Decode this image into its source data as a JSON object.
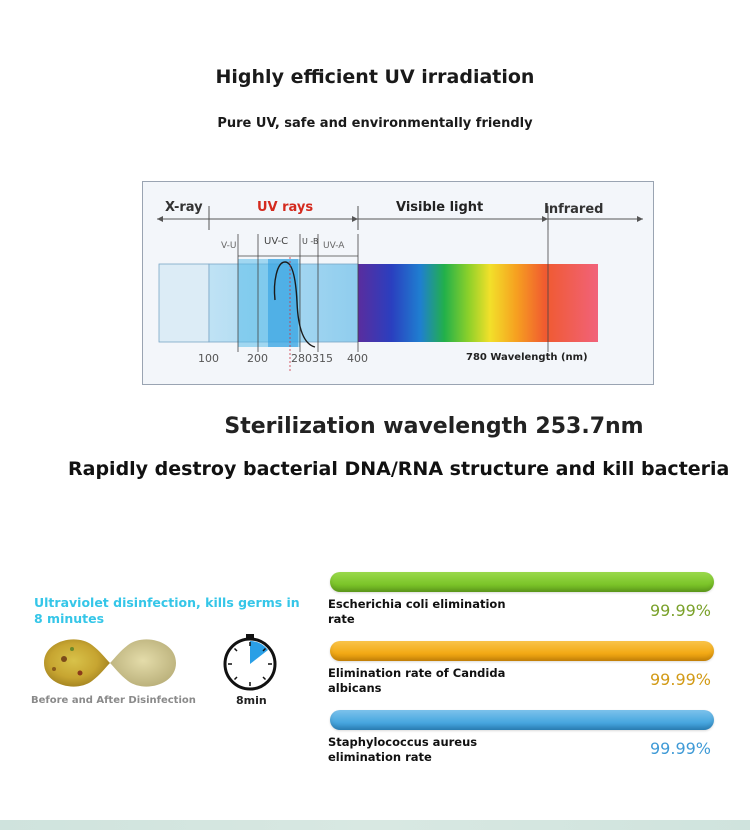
{
  "header": {
    "title": "Highly efficient UV irradiation",
    "subtitle": "Pure UV, safe and environmentally friendly"
  },
  "spectrum": {
    "regions": {
      "xray": "X-ray",
      "uv": "UV rays",
      "visible": "Visible light",
      "infrared": "Infrared"
    },
    "bands": {
      "uvv": "V-U",
      "uvc": "UV-C",
      "uvb": "U -B",
      "uva": "UV-A"
    },
    "ticks": {
      "t100": "100",
      "t200": "200",
      "t280315": "280315",
      "t400": "400"
    },
    "axis_label": "780 Wavelength (nm)",
    "colors": {
      "uv_label": "#d42a1e",
      "band_uv": "#4fb6ea"
    }
  },
  "sterilization": "Sterilization wavelength 253.7nm",
  "destroy": "Rapidly destroy bacterial DNA/RNA structure and kill bacteria",
  "left_panel": {
    "caption": "Ultraviolet disinfection, kills germs in 8 minutes",
    "germ_caption": "Before and After Disinfection",
    "timer_label": "8min",
    "timer_icon": "stopwatch-icon",
    "accent": "#35c6e8"
  },
  "rates": [
    {
      "label": "Escherichia coli elimination rate",
      "value": "99.99%",
      "color": "#7cc52a"
    },
    {
      "label": "Elimination rate of Candida albicans",
      "value": "99.99%",
      "color": "#f3aa16"
    },
    {
      "label": "Staphylococcus aureus elimination rate",
      "value": "99.99%",
      "color": "#4aa8e0"
    }
  ]
}
